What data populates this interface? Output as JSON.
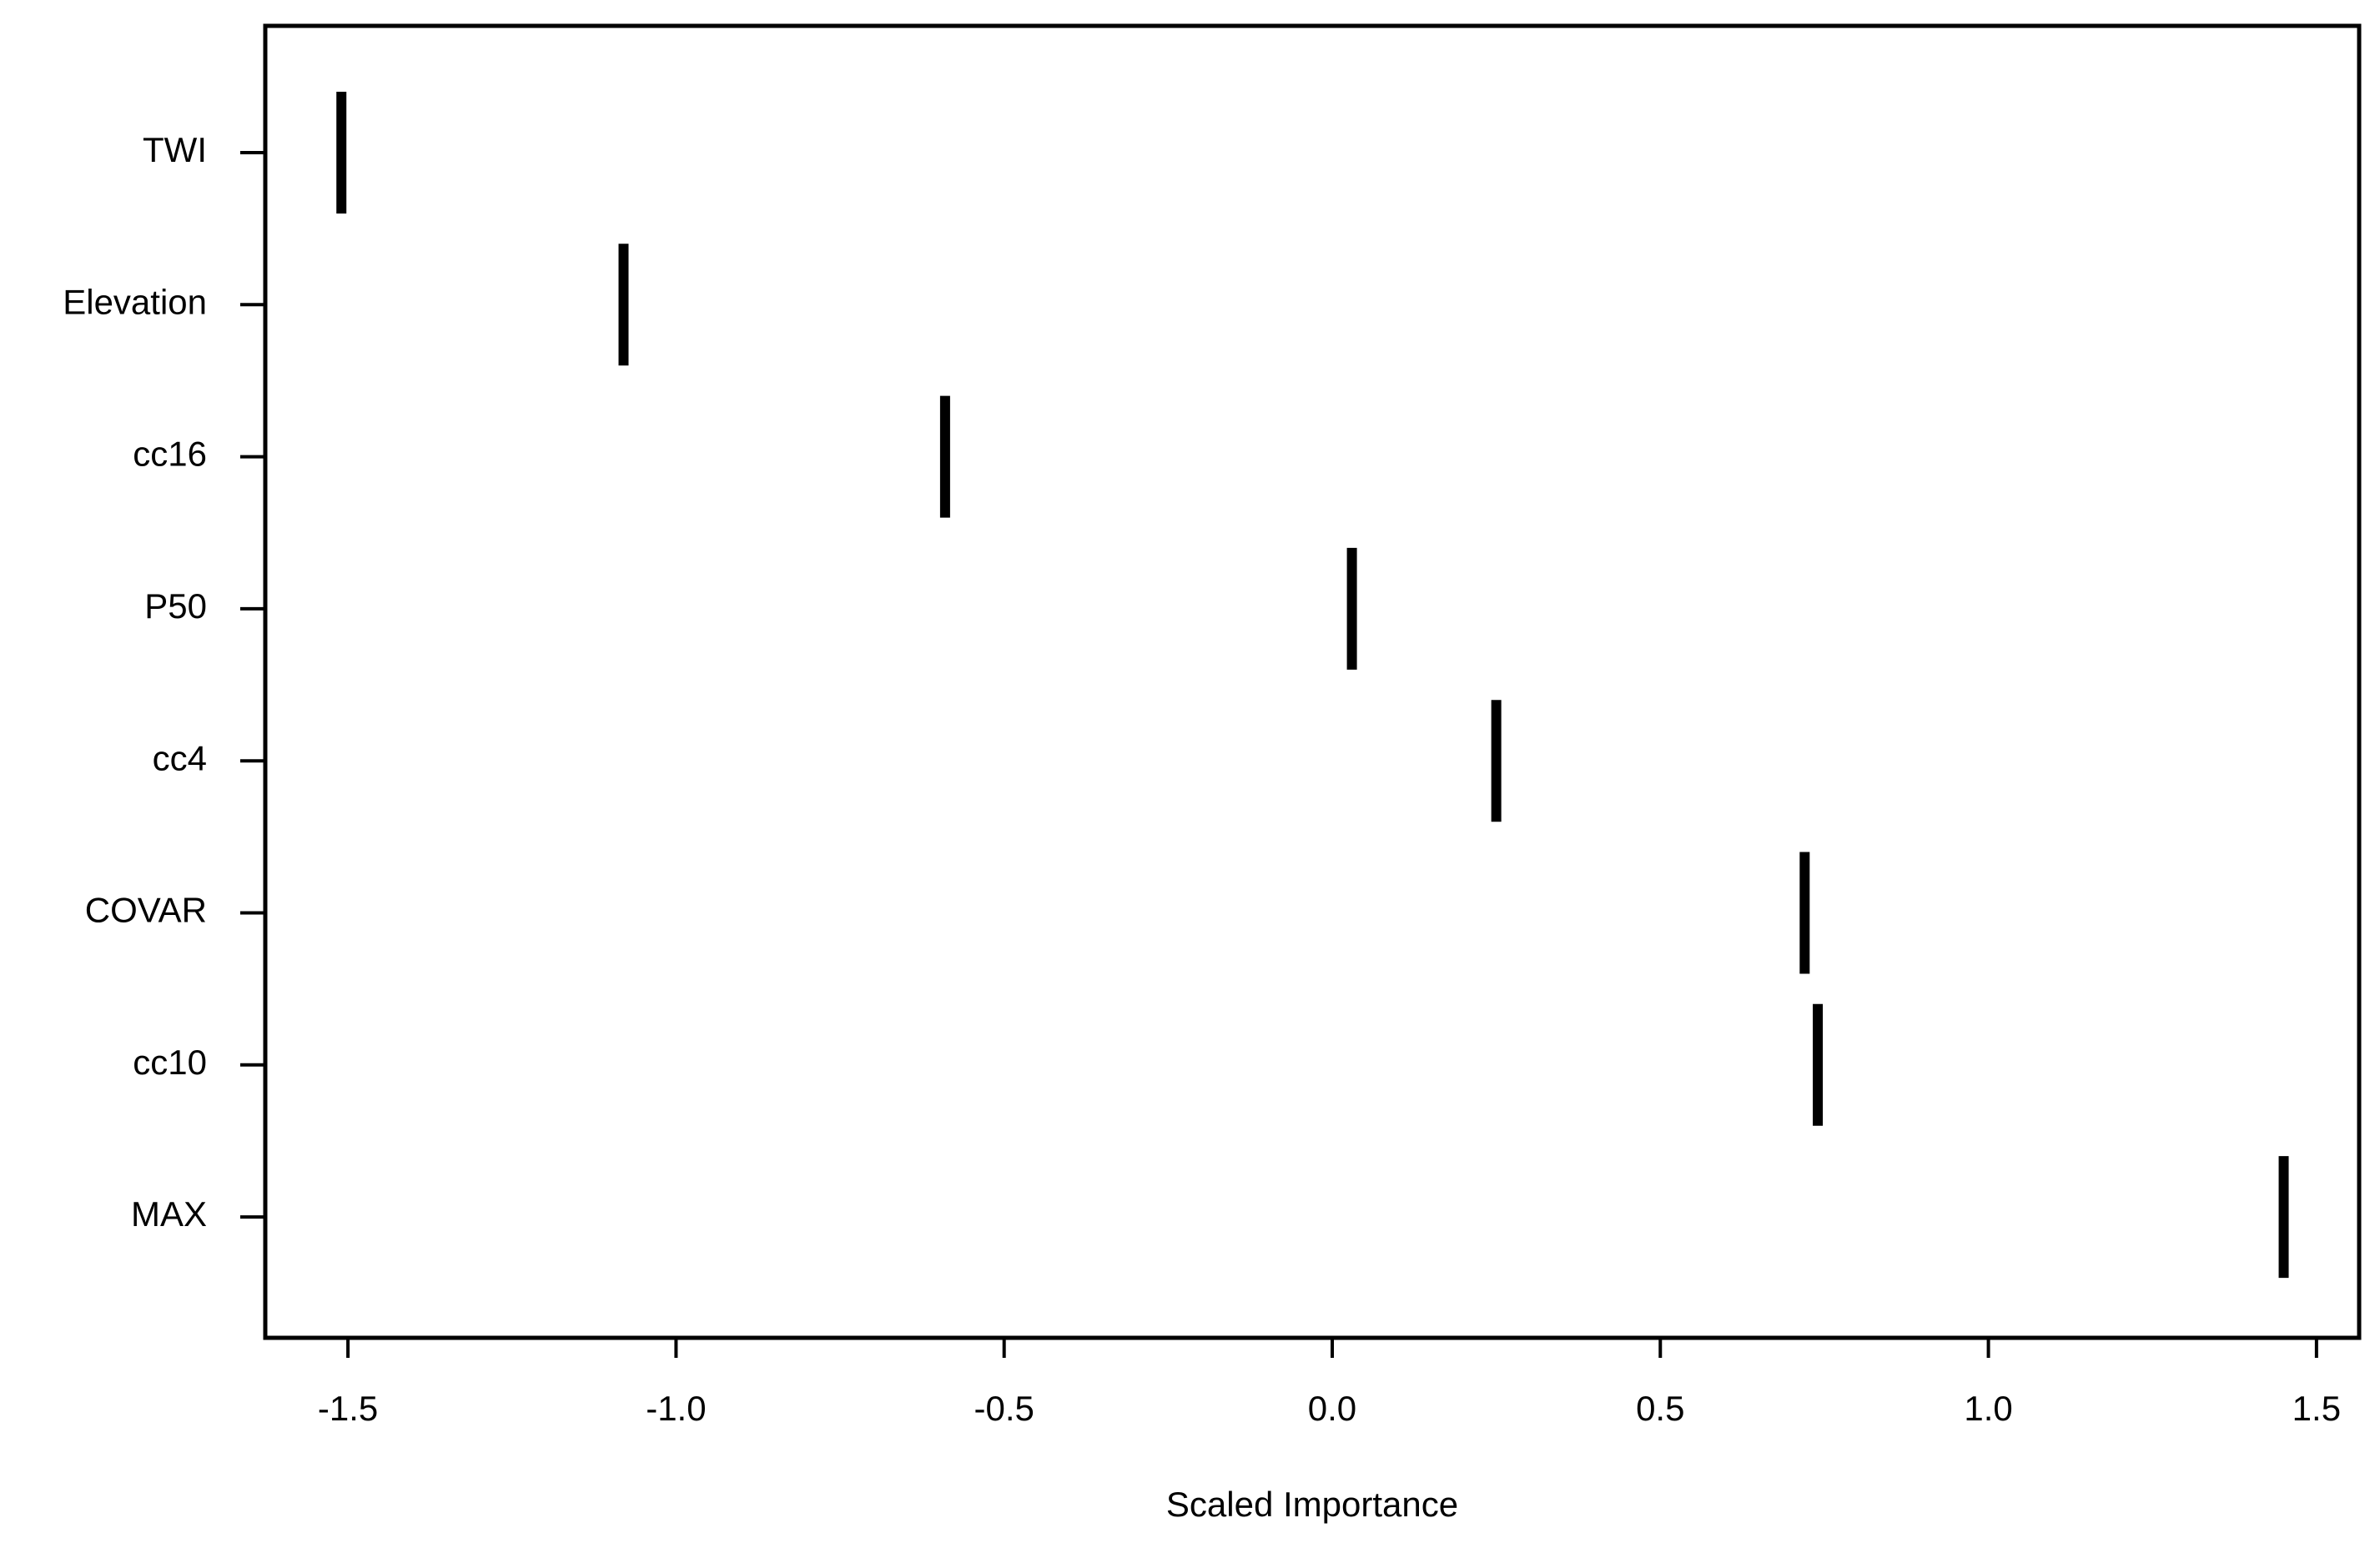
{
  "chart_data": {
    "type": "dot",
    "x_label": "Scaled Importance",
    "categories": [
      "TWI",
      "Elevation",
      "cc16",
      "P50",
      "cc4",
      "COVAR",
      "cc10",
      "MAX"
    ],
    "values": [
      -1.51,
      -1.08,
      -0.59,
      0.03,
      0.25,
      0.72,
      0.74,
      1.45
    ],
    "color": "#000000",
    "xlim": [
      -1.626,
      1.565
    ],
    "xticks": [
      -1.5,
      {
        "value": -1.0,
        "label": "-1.0"
      },
      -0.5,
      {
        "value": 0.0,
        "label": "0.0"
      },
      0.5,
      {
        "value": 1.0,
        "label": "1.0"
      },
      1.5
    ]
  }
}
